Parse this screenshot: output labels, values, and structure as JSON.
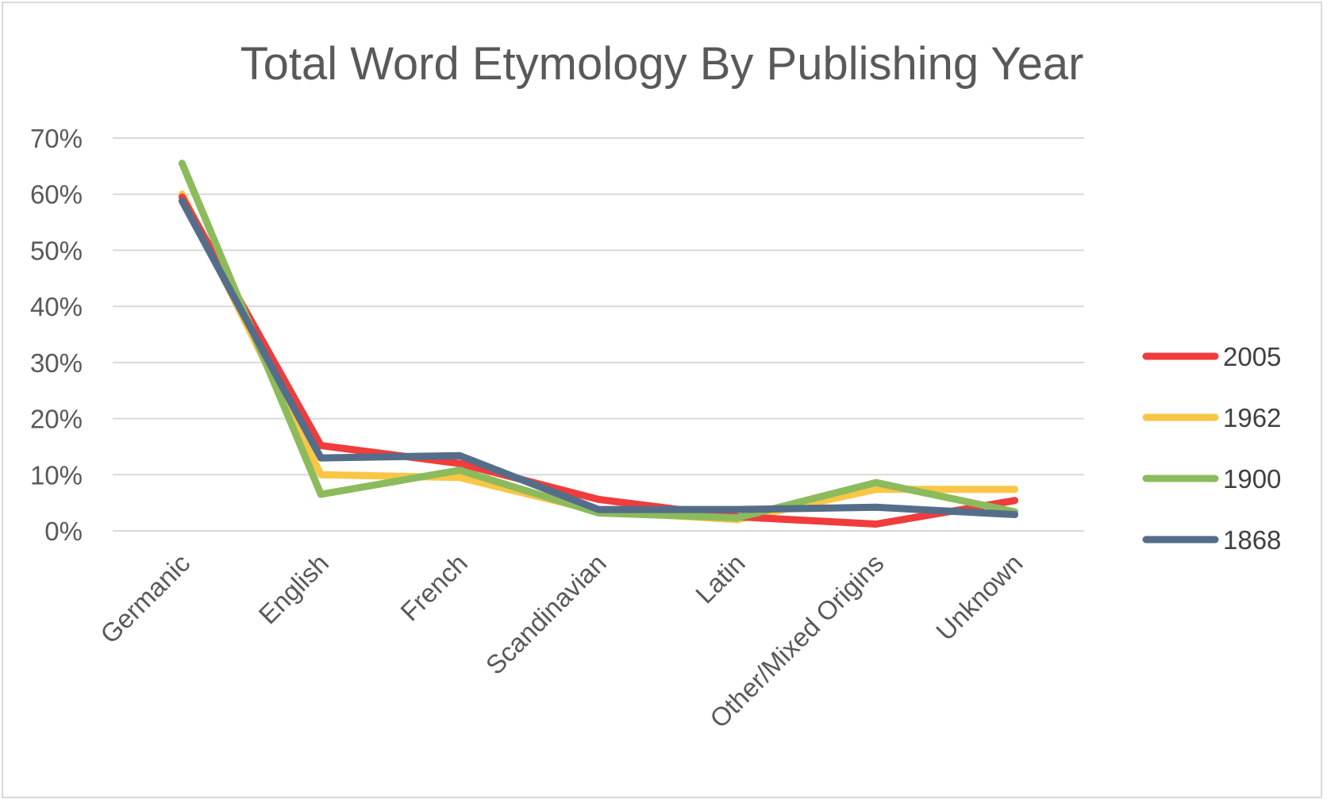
{
  "chart_data": {
    "type": "line",
    "title": "Total Word Etymology By Publishing Year",
    "xlabel": "",
    "ylabel": "",
    "categories": [
      "Germanic",
      "English",
      "French",
      "Scandinavian",
      "Latin",
      "Other/Mixed Origins",
      "Unknown"
    ],
    "y_ticks": [
      "0%",
      "10%",
      "20%",
      "30%",
      "40%",
      "50%",
      "60%",
      "70%"
    ],
    "ylim": [
      0,
      70
    ],
    "grid": true,
    "legend_position": "right",
    "series": [
      {
        "name": "2005",
        "color": "#f03c3c",
        "values": [
          59.5,
          15.2,
          12.0,
          5.6,
          2.5,
          1.2,
          5.4
        ]
      },
      {
        "name": "1962",
        "color": "#f9c646",
        "values": [
          60.0,
          10.0,
          9.5,
          3.5,
          2.0,
          7.4,
          7.4
        ]
      },
      {
        "name": "1900",
        "color": "#8cbb5c",
        "values": [
          65.5,
          6.5,
          10.8,
          3.2,
          2.3,
          8.6,
          3.4
        ]
      },
      {
        "name": "1868",
        "color": "#546e8a",
        "values": [
          58.8,
          13.0,
          13.4,
          3.8,
          3.8,
          4.2,
          2.9
        ]
      }
    ]
  }
}
